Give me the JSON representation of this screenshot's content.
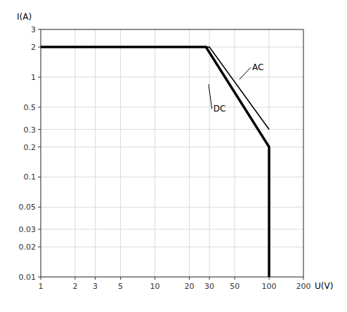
{
  "chart_data": {
    "type": "line",
    "xlabel": "U(V)",
    "ylabel": "I(A)",
    "log": true,
    "grid": true,
    "xlim": [
      1,
      200
    ],
    "ylim": [
      0.01,
      3
    ],
    "xticks": [
      1,
      2,
      3,
      5,
      10,
      20,
      30,
      50,
      100,
      200
    ],
    "yticks": [
      0.01,
      0.02,
      0.03,
      0.05,
      0.1,
      0.2,
      0.3,
      0.5,
      1,
      2,
      3
    ],
    "series": [
      {
        "x": [
          1,
          28,
          100,
          100
        ],
        "values": [
          2,
          2,
          0.2,
          0.01
        ],
        "color": "#000000"
      },
      {
        "x": [
          1,
          30,
          100
        ],
        "values": [
          2,
          2,
          0.3
        ],
        "color": "#000000"
      }
    ],
    "annotations": [
      {
        "text": "DC",
        "x": 32,
        "y": 0.48,
        "arrow_x": 29.5,
        "arrow_y": 0.85
      },
      {
        "text": "AC",
        "x": 70,
        "y": 1.25,
        "arrow_x": 55,
        "arrow_y": 0.95
      }
    ]
  }
}
